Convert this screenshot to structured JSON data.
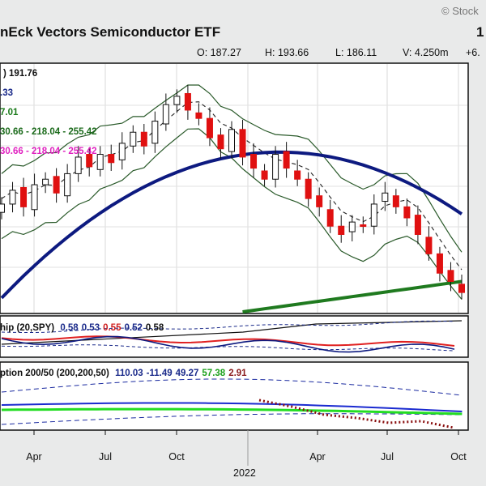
{
  "header": {
    "watermark": "© Stock",
    "title": "nEck Vectors Semiconductor ETF",
    "price_fragment": "1",
    "ohlc": {
      "open": "O: 187.27",
      "high": "H: 193.66",
      "low": "L: 186.11",
      "volume": "V: 4.250m",
      "change": "+6."
    }
  },
  "price_panel": {
    "labels": [
      {
        "text": ") 191.76",
        "color": "#111111"
      },
      {
        "text": ".33",
        "color": "#1a2a8a"
      },
      {
        "text": "7.01",
        "color": "#1a7a1a"
      },
      {
        "text": "30.66 - 218.04 - 255.42",
        "color": "#1a6a1a"
      },
      {
        "text": "30.66 - 218.04 - 255.42",
        "color": "#e020c0"
      }
    ]
  },
  "relative_strength_panel": {
    "label_prefix": "hip (20,SPY)",
    "values": [
      {
        "text": "0.58",
        "color": "#1a2a8a"
      },
      {
        "text": "0.53",
        "color": "#1a2a8a"
      },
      {
        "text": "0.55",
        "color": "#d02020"
      },
      {
        "text": "0.52",
        "color": "#1a2a8a"
      },
      {
        "text": "0.58",
        "color": "#111111"
      }
    ]
  },
  "momentum_panel": {
    "label_prefix": "ption 200/50 (200,200,50)",
    "values": [
      {
        "text": "110.03",
        "color": "#1a2a8a"
      },
      {
        "text": "-11.49",
        "color": "#1a2a8a"
      },
      {
        "text": "49.27",
        "color": "#1a2a8a"
      },
      {
        "text": "57.38",
        "color": "#1aa01a"
      },
      {
        "text": "2.91",
        "color": "#8a1a1a"
      }
    ]
  },
  "x_axis": {
    "ticks": [
      "Apr",
      "Jul",
      "Oct",
      "Apr",
      "Jul",
      "Oct"
    ],
    "year_label": "2022"
  },
  "chart_data": {
    "type": "line",
    "ylim": [
      150,
      320
    ],
    "series": [
      {
        "name": "price",
        "values": [
          228,
          238,
          226,
          242,
          246,
          236,
          250,
          262,
          255,
          264,
          258,
          272,
          280,
          270,
          288,
          300,
          306,
          296,
          290,
          276,
          268,
          282,
          262,
          254,
          246,
          264,
          254,
          246,
          232,
          226,
          212,
          206,
          215,
          212,
          228,
          236,
          226,
          218,
          206,
          192,
          178,
          172,
          164
        ]
      }
    ]
  }
}
